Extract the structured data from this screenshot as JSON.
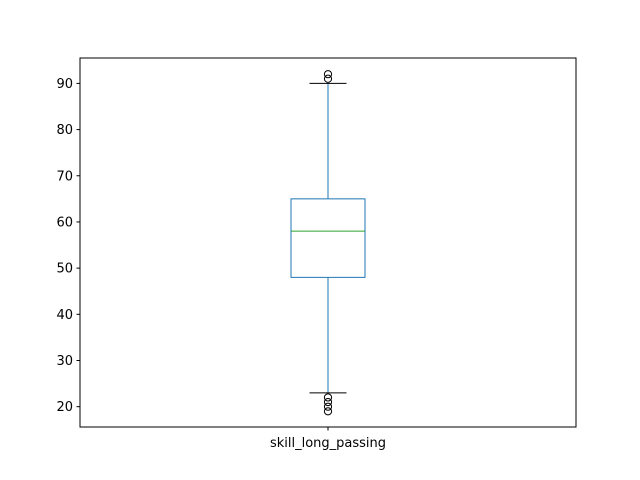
{
  "chart_data": {
    "type": "boxplot",
    "title": "",
    "xlabel": "",
    "ylabel": "",
    "categories": [
      "skill_long_passing"
    ],
    "ylim": [
      15.6,
      95.5
    ],
    "yticks": [
      20,
      30,
      40,
      50,
      60,
      70,
      80,
      90
    ],
    "boxes": [
      {
        "label": "skill_long_passing",
        "whisker_low": 23,
        "q1": 48,
        "median": 58,
        "q3": 65,
        "whisker_high": 90,
        "outliers": [
          19,
          20,
          21,
          22,
          91,
          92
        ]
      }
    ],
    "grid": false,
    "colors": {
      "box": "#1f77b4",
      "median": "#2ca02c",
      "cap": "#000000",
      "outlier": "#000000"
    }
  }
}
